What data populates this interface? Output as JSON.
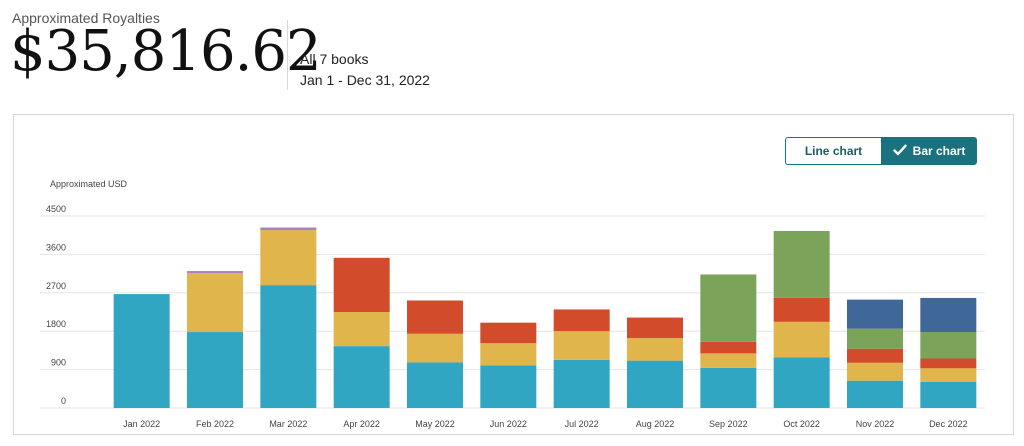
{
  "header": {
    "label": "Approximated Royalties",
    "amount": "$35,816.62",
    "scope": "All 7 books",
    "range": "Jan 1 - Dec 31, 2022"
  },
  "toggle": {
    "line_label": "Line chart",
    "bar_label": "Bar chart",
    "selected": "bar",
    "check_icon": "check-icon"
  },
  "colors": {
    "teal": "#31a6c3",
    "gold": "#e0b54b",
    "red": "#d24b2a",
    "green": "#7ca35a",
    "navy": "#3f6797",
    "purple": "#a981c1"
  },
  "chart_data": {
    "type": "bar",
    "stacked": true,
    "ylabel": "Approximated USD",
    "ylim": [
      0,
      4500
    ],
    "yticks": [
      0,
      900,
      1800,
      2700,
      3600,
      4500
    ],
    "grid": true,
    "categories": [
      "Jan 2022",
      "Feb 2022",
      "Mar 2022",
      "Apr 2022",
      "May 2022",
      "Jun 2022",
      "Jul 2022",
      "Aug 2022",
      "Sep 2022",
      "Oct 2022",
      "Nov 2022",
      "Dec 2022"
    ],
    "series": [
      {
        "color": "#31a6c3",
        "values": [
          2670,
          1780,
          2880,
          1450,
          1070,
          1000,
          1130,
          1110,
          940,
          1190,
          640,
          610
        ]
      },
      {
        "color": "#e0b54b",
        "values": [
          0,
          1380,
          1290,
          800,
          670,
          520,
          670,
          530,
          340,
          830,
          420,
          320
        ]
      },
      {
        "color": "#d24b2a",
        "values": [
          0,
          0,
          0,
          1270,
          780,
          480,
          510,
          480,
          270,
          560,
          330,
          230
        ]
      },
      {
        "color": "#7ca35a",
        "values": [
          0,
          0,
          0,
          0,
          0,
          0,
          0,
          0,
          1580,
          1570,
          470,
          620
        ]
      },
      {
        "color": "#3f6797",
        "values": [
          0,
          0,
          0,
          0,
          0,
          0,
          0,
          0,
          0,
          0,
          680,
          800
        ]
      },
      {
        "color": "#a981c1",
        "values": [
          0,
          50,
          60,
          0,
          0,
          0,
          0,
          0,
          0,
          0,
          0,
          0
        ]
      }
    ]
  }
}
